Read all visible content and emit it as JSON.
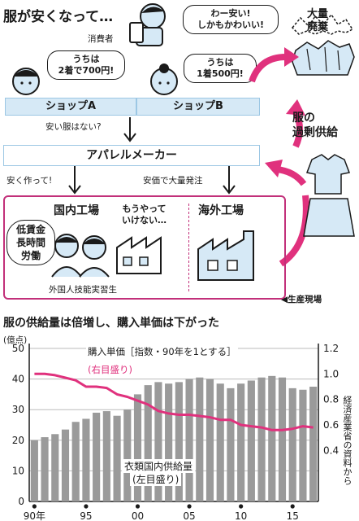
{
  "diagram": {
    "title": "服が安くなって…",
    "consumer": {
      "label": "消費者",
      "speech_line1": "わー安い!",
      "speech_line2": "しかもかわいい!"
    },
    "shop_a": {
      "label": "ショップA",
      "speech_line1": "うちは",
      "speech_line2": "2着で700円!"
    },
    "shop_b": {
      "label": "ショップB",
      "speech_line1": "うちは",
      "speech_line2": "1着500円!"
    },
    "waste": {
      "line1": "大量",
      "line2": "廃棄"
    },
    "oversupply": {
      "line1": "服の",
      "line2": "過剰供給"
    },
    "question": "安い服はない?",
    "maker": "アパレルメーカー",
    "make_cheap": "安く作って!",
    "bulk_order": "安価で大量発注",
    "domestic_factory": "国内工場",
    "overseas_factory": "海外工場",
    "give_up_line1": "もうやって",
    "give_up_line2": "いけない…",
    "labor_line1": "低賃金",
    "labor_line2": "長時間",
    "labor_line3": "労働",
    "trainee": "外国人技能実習生",
    "production_site": "◀生産現場"
  },
  "chart": {
    "title": "服の供給量は倍増し、購入単価は下がった",
    "left_unit": "(億点)",
    "price_label": "購入単価［指数・90年を1とする］",
    "price_axis_note": "(右目盛り)",
    "supply_label": "衣類国内供給量",
    "supply_axis_note": "(左目盛り)",
    "source": "経済産業省の資料から"
  },
  "chart_data": {
    "type": "bar",
    "title": "服の供給量は倍増し、購入単価は下がった",
    "x": [
      1990,
      1991,
      1992,
      1993,
      1994,
      1995,
      1996,
      1997,
      1998,
      1999,
      2000,
      2001,
      2002,
      2003,
      2004,
      2005,
      2006,
      2007,
      2008,
      2009,
      2010,
      2011,
      2012,
      2013,
      2014,
      2015,
      2016,
      2017
    ],
    "x_tick_values": [
      1990,
      1995,
      2000,
      2005,
      2010,
      2015
    ],
    "x_tick_labels": [
      "90年",
      "95",
      "00",
      "05",
      "10",
      "15"
    ],
    "left_axis": {
      "unit": "(億点)",
      "ylim": [
        0,
        50
      ],
      "ticks": [
        0,
        10,
        20,
        30,
        40,
        50
      ]
    },
    "right_axis": {
      "ylim": [
        0,
        1.2
      ],
      "ticks": [
        0.4,
        0.6,
        0.8,
        1.0,
        1.2
      ]
    },
    "series": [
      {
        "name": "衣類国内供給量",
        "type": "bar",
        "axis": "left",
        "values": [
          20,
          21,
          22,
          23.5,
          26,
          27,
          29,
          29.5,
          28,
          30,
          35,
          38,
          39,
          38.5,
          39,
          40,
          40.5,
          40,
          38.5,
          37,
          38.5,
          39.5,
          40.5,
          41,
          40.5,
          37,
          36.5,
          37.5
        ]
      },
      {
        "name": "購入単価",
        "type": "line",
        "axis": "right",
        "values": [
          1.0,
          1.0,
          0.99,
          0.97,
          0.95,
          0.9,
          0.9,
          0.89,
          0.84,
          0.82,
          0.79,
          0.76,
          0.71,
          0.69,
          0.68,
          0.68,
          0.67,
          0.66,
          0.64,
          0.64,
          0.6,
          0.59,
          0.58,
          0.56,
          0.56,
          0.57,
          0.59,
          0.58
        ]
      }
    ],
    "colors": {
      "bars": "#9a9a9a",
      "line": "#e0317d"
    },
    "grid": true
  }
}
